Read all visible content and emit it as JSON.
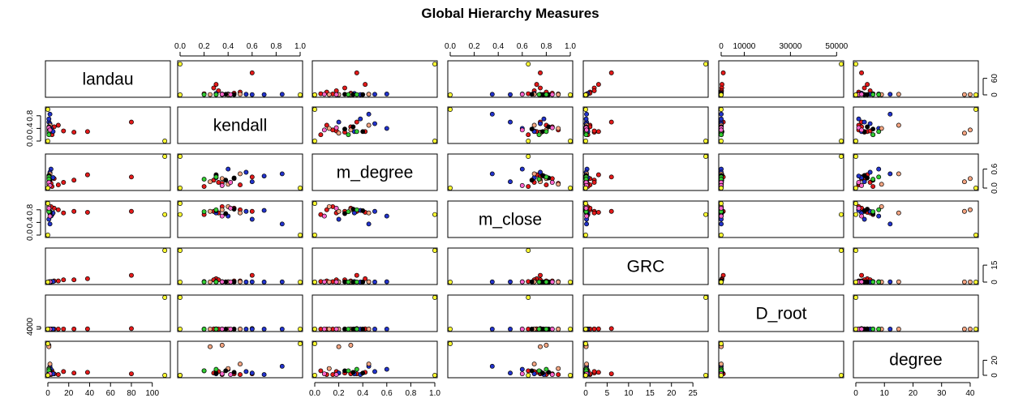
{
  "chart_data": {
    "type": "scatter-matrix",
    "title": "Global Hierarchy Measures",
    "variables": [
      "landau",
      "kendall",
      "m_degree",
      "m_close",
      "GRC",
      "D_root",
      "degree"
    ],
    "ranges": {
      "landau": [
        0,
        115
      ],
      "kendall": [
        0,
        1
      ],
      "m_degree": [
        0,
        1
      ],
      "m_close": [
        0,
        1
      ],
      "GRC": [
        0,
        28
      ],
      "D_root": [
        0,
        52000
      ],
      "degree": [
        0,
        42
      ]
    },
    "axes": {
      "top": [
        {
          "variable": "kendall",
          "ticks": [
            "0.0",
            "0.2",
            "0.4",
            "0.6",
            "0.8",
            "1.0"
          ],
          "values": [
            0,
            0.2,
            0.4,
            0.6,
            0.8,
            1.0
          ]
        },
        {
          "variable": "m_close",
          "ticks": [
            "0.0",
            "0.2",
            "0.4",
            "0.6",
            "0.8",
            "1.0"
          ],
          "values": [
            0,
            0.2,
            0.4,
            0.6,
            0.8,
            1.0
          ]
        },
        {
          "variable": "D_root",
          "ticks": [
            "0",
            "10000",
            "30000",
            "50000"
          ],
          "values": [
            0,
            10000,
            30000,
            50000
          ]
        }
      ],
      "bottom": [
        {
          "variable": "landau",
          "ticks": [
            "0",
            "20",
            "40",
            "60",
            "80",
            "100"
          ],
          "values": [
            0,
            20,
            40,
            60,
            80,
            100
          ]
        },
        {
          "variable": "m_degree",
          "ticks": [
            "0.0",
            "0.2",
            "0.4",
            "0.6",
            "0.8",
            "1.0"
          ],
          "values": [
            0,
            0.2,
            0.4,
            0.6,
            0.8,
            1.0
          ]
        },
        {
          "variable": "GRC",
          "ticks": [
            "0",
            "5",
            "10",
            "15",
            "20",
            "25"
          ],
          "values": [
            0,
            5,
            10,
            15,
            20,
            25
          ]
        },
        {
          "variable": "degree",
          "ticks": [
            "0",
            "10",
            "20",
            "30",
            "40"
          ],
          "values": [
            0,
            10,
            20,
            30,
            40
          ]
        }
      ],
      "left": [
        {
          "variable": "kendall",
          "ticks": [
            "0.0",
            "0.4",
            "0.8"
          ],
          "values": [
            0,
            0.4,
            0.8
          ]
        },
        {
          "variable": "m_close",
          "ticks": [
            "0.0",
            "0.4",
            "0.8"
          ],
          "values": [
            0,
            0.4,
            0.8
          ]
        },
        {
          "variable": "D_root",
          "ticks": [
            "0",
            "4000"
          ],
          "values": [
            0,
            4000
          ]
        }
      ],
      "right": [
        {
          "variable": "landau",
          "ticks": [
            "0",
            "60"
          ],
          "values": [
            0,
            60
          ]
        },
        {
          "variable": "m_degree",
          "ticks": [
            "0.0",
            "0.6"
          ],
          "values": [
            0,
            0.6
          ]
        },
        {
          "variable": "GRC",
          "ticks": [
            "0",
            "15"
          ],
          "values": [
            0,
            15
          ]
        },
        {
          "variable": "degree",
          "ticks": [
            "0",
            "20"
          ],
          "values": [
            0,
            20
          ]
        }
      ]
    },
    "groups": [
      {
        "color": "#e41a1a",
        "points": [
          {
            "landau": 80,
            "kendall": 0.6,
            "m_degree": 0.35,
            "m_close": 0.75,
            "GRC": 6,
            "D_root": 900,
            "degree": 2
          },
          {
            "landau": 38,
            "kendall": 0.3,
            "m_degree": 0.42,
            "m_close": 0.72,
            "GRC": 3,
            "D_root": 350,
            "degree": 4
          },
          {
            "landau": 25,
            "kendall": 0.28,
            "m_degree": 0.25,
            "m_close": 0.75,
            "GRC": 2,
            "D_root": 250,
            "degree": 3
          },
          {
            "landau": 15,
            "kendall": 0.32,
            "m_degree": 0.18,
            "m_close": 0.7,
            "GRC": 2,
            "D_root": 150,
            "degree": 5
          },
          {
            "landau": 10,
            "kendall": 0.5,
            "m_degree": 0.1,
            "m_close": 0.8,
            "GRC": 1,
            "D_root": 90,
            "degree": 1
          },
          {
            "landau": 6,
            "kendall": 0.45,
            "m_degree": 0.3,
            "m_close": 0.85,
            "GRC": 1,
            "D_root": 60,
            "degree": 2
          },
          {
            "landau": 4,
            "kendall": 0.2,
            "m_degree": 0.05,
            "m_close": 0.65,
            "GRC": 0.5,
            "D_root": 40,
            "degree": 6
          },
          {
            "landau": 3,
            "kendall": 0.35,
            "m_degree": 0.15,
            "m_close": 0.9,
            "GRC": 0.4,
            "D_root": 25,
            "degree": 1
          }
        ]
      },
      {
        "color": "#2233cc",
        "points": [
          {
            "landau": 2,
            "kendall": 0.85,
            "m_degree": 0.45,
            "m_close": 0.35,
            "GRC": 0.2,
            "D_root": 30,
            "degree": 12
          },
          {
            "landau": 3,
            "kendall": 0.4,
            "m_degree": 0.6,
            "m_close": 0.6,
            "GRC": 0.3,
            "D_root": 20,
            "degree": 8
          },
          {
            "landau": 1,
            "kendall": 0.6,
            "m_degree": 0.2,
            "m_close": 0.5,
            "GRC": 0.2,
            "D_root": 15,
            "degree": 3
          },
          {
            "landau": 5,
            "kendall": 0.3,
            "m_degree": 0.33,
            "m_close": 0.7,
            "GRC": 0.5,
            "D_root": 50,
            "degree": 2
          },
          {
            "landau": 2,
            "kendall": 0.55,
            "m_degree": 0.5,
            "m_close": 0.75,
            "GRC": 0.1,
            "D_root": 10,
            "degree": 5
          },
          {
            "landau": 1,
            "kendall": 0.7,
            "m_degree": 0.38,
            "m_close": 0.78,
            "GRC": 0.1,
            "D_root": 8,
            "degree": 1
          }
        ]
      },
      {
        "color": "#f4a582",
        "points": [
          {
            "landau": 1,
            "kendall": 0.35,
            "m_degree": 0.3,
            "m_close": 0.8,
            "GRC": 0.1,
            "D_root": 5,
            "degree": 40
          },
          {
            "landau": 1,
            "kendall": 0.25,
            "m_degree": 0.2,
            "m_close": 0.75,
            "GRC": 0.1,
            "D_root": 6,
            "degree": 38
          },
          {
            "landau": 2,
            "kendall": 0.5,
            "m_degree": 0.45,
            "m_close": 0.7,
            "GRC": 0.2,
            "D_root": 12,
            "degree": 15
          },
          {
            "landau": 1,
            "kendall": 0.4,
            "m_degree": 0.12,
            "m_close": 0.9,
            "GRC": 0.1,
            "D_root": 4,
            "degree": 9
          }
        ]
      },
      {
        "color": "#000000",
        "points": [
          {
            "landau": 1,
            "kendall": 0.45,
            "m_degree": 0.32,
            "m_close": 0.82,
            "GRC": 0.1,
            "D_root": 7,
            "degree": 4
          },
          {
            "landau": 2,
            "kendall": 0.38,
            "m_degree": 0.25,
            "m_close": 0.68,
            "GRC": 0.2,
            "D_root": 9,
            "degree": 6
          },
          {
            "landau": 1,
            "kendall": 0.3,
            "m_degree": 0.4,
            "m_close": 0.77,
            "GRC": 0.1,
            "D_root": 5,
            "degree": 3
          }
        ]
      },
      {
        "color": "#33cc33",
        "points": [
          {
            "landau": 1,
            "kendall": 0.3,
            "m_degree": 0.35,
            "m_close": 0.8,
            "GRC": 0.1,
            "D_root": 5,
            "degree": 8
          },
          {
            "landau": 1,
            "kendall": 0.2,
            "m_degree": 0.28,
            "m_close": 0.74,
            "GRC": 0.1,
            "D_root": 4,
            "degree": 6
          }
        ]
      },
      {
        "color": "#ff66cc",
        "points": [
          {
            "landau": 1,
            "kendall": 0.42,
            "m_degree": 0.18,
            "m_close": 0.85,
            "GRC": 0.1,
            "D_root": 4,
            "degree": 1
          },
          {
            "landau": 2,
            "kendall": 0.35,
            "m_degree": 0.08,
            "m_close": 0.6,
            "GRC": 0.2,
            "D_root": 7,
            "degree": 2
          }
        ]
      },
      {
        "color": "#ffff33",
        "points": [
          {
            "landau": 112,
            "kendall": 0.0,
            "m_degree": 1.0,
            "m_close": 0.65,
            "GRC": 28,
            "D_root": 52000,
            "degree": 0
          },
          {
            "landau": 0,
            "kendall": 1.0,
            "m_degree": 0.0,
            "m_close": 0.0,
            "GRC": 0,
            "D_root": 0,
            "degree": 42
          },
          {
            "landau": 0,
            "kendall": 0.0,
            "m_degree": 0.0,
            "m_close": 1.0,
            "GRC": 0,
            "D_root": 0,
            "degree": 0
          }
        ]
      }
    ]
  }
}
